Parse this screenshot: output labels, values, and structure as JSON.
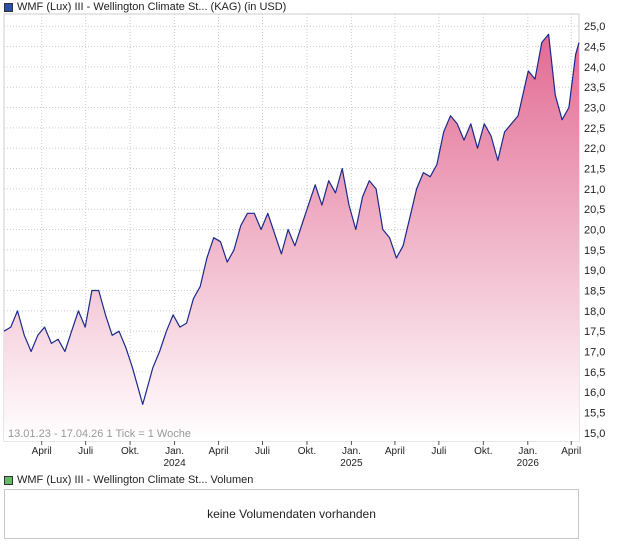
{
  "price_chart": {
    "legend_label": "WMF (Lux) III - Wellington Climate St... (KAG) (in USD)",
    "footer": "13.01.23 - 17.04.26   1 Tick = 1 Woche",
    "colors": {
      "line": "#1a2a8a",
      "fill_top": "#e26a93",
      "fill_bottom": "#ffffff",
      "grid": "#cccccc",
      "swatch": "#2b4fa8"
    }
  },
  "volume_chart": {
    "legend_label": "WMF (Lux) III - Wellington Climate St... Volumen",
    "message": "keine Volumendaten vorhanden",
    "swatch_color": "#66bb66"
  },
  "chart_data": {
    "type": "area",
    "ylim": [
      14.8,
      25.3
    ],
    "xlim": [
      "2023-01-13",
      "2026-04-17"
    ],
    "y_ticks": [
      "15,0",
      "15,5",
      "16,0",
      "16,5",
      "17,0",
      "17,5",
      "18,0",
      "18,5",
      "19,0",
      "19,5",
      "20,0",
      "20,5",
      "21,0",
      "21,5",
      "22,0",
      "22,5",
      "23,0",
      "23,5",
      "24,0",
      "24,5",
      "25,0"
    ],
    "x_ticks": [
      {
        "label": "April",
        "date": "2023-04-01"
      },
      {
        "label": "Juli",
        "date": "2023-07-01"
      },
      {
        "label": "Okt.",
        "date": "2023-10-01"
      },
      {
        "label": "Jan.",
        "year": "2024",
        "date": "2024-01-01"
      },
      {
        "label": "April",
        "date": "2024-04-01"
      },
      {
        "label": "Juli",
        "date": "2024-07-01"
      },
      {
        "label": "Okt.",
        "date": "2024-10-01"
      },
      {
        "label": "Jan.",
        "year": "2025",
        "date": "2025-01-01"
      },
      {
        "label": "April",
        "date": "2025-04-01"
      },
      {
        "label": "Juli",
        "date": "2025-07-01"
      },
      {
        "label": "Okt.",
        "date": "2025-10-01"
      },
      {
        "label": "Jan.",
        "year": "2026",
        "date": "2026-01-01"
      },
      {
        "label": "April",
        "date": "2026-04-01"
      }
    ],
    "series": [
      {
        "values": [
          [
            "2023-01-13",
            17.5
          ],
          [
            "2023-01-27",
            17.6
          ],
          [
            "2023-02-10",
            18.0
          ],
          [
            "2023-02-24",
            17.4
          ],
          [
            "2023-03-10",
            17.0
          ],
          [
            "2023-03-24",
            17.4
          ],
          [
            "2023-04-07",
            17.6
          ],
          [
            "2023-04-21",
            17.2
          ],
          [
            "2023-05-05",
            17.3
          ],
          [
            "2023-05-19",
            17.0
          ],
          [
            "2023-06-02",
            17.5
          ],
          [
            "2023-06-16",
            18.0
          ],
          [
            "2023-06-30",
            17.6
          ],
          [
            "2023-07-14",
            18.5
          ],
          [
            "2023-07-28",
            18.5
          ],
          [
            "2023-08-11",
            17.9
          ],
          [
            "2023-08-25",
            17.4
          ],
          [
            "2023-09-08",
            17.5
          ],
          [
            "2023-09-22",
            17.1
          ],
          [
            "2023-10-06",
            16.6
          ],
          [
            "2023-10-20",
            16.0
          ],
          [
            "2023-10-27",
            15.7
          ],
          [
            "2023-11-03",
            16.0
          ],
          [
            "2023-11-17",
            16.6
          ],
          [
            "2023-12-01",
            17.0
          ],
          [
            "2023-12-15",
            17.5
          ],
          [
            "2023-12-29",
            17.9
          ],
          [
            "2024-01-12",
            17.6
          ],
          [
            "2024-01-26",
            17.7
          ],
          [
            "2024-02-09",
            18.3
          ],
          [
            "2024-02-23",
            18.6
          ],
          [
            "2024-03-08",
            19.3
          ],
          [
            "2024-03-22",
            19.8
          ],
          [
            "2024-04-05",
            19.7
          ],
          [
            "2024-04-19",
            19.2
          ],
          [
            "2024-05-03",
            19.5
          ],
          [
            "2024-05-17",
            20.1
          ],
          [
            "2024-05-31",
            20.4
          ],
          [
            "2024-06-14",
            20.4
          ],
          [
            "2024-06-28",
            20.0
          ],
          [
            "2024-07-12",
            20.4
          ],
          [
            "2024-07-26",
            19.9
          ],
          [
            "2024-08-09",
            19.4
          ],
          [
            "2024-08-23",
            20.0
          ],
          [
            "2024-09-06",
            19.6
          ],
          [
            "2024-09-20",
            20.1
          ],
          [
            "2024-10-04",
            20.6
          ],
          [
            "2024-10-18",
            21.1
          ],
          [
            "2024-11-01",
            20.6
          ],
          [
            "2024-11-15",
            21.2
          ],
          [
            "2024-11-29",
            20.9
          ],
          [
            "2024-12-13",
            21.5
          ],
          [
            "2024-12-27",
            20.6
          ],
          [
            "2025-01-10",
            20.0
          ],
          [
            "2025-01-24",
            20.8
          ],
          [
            "2025-02-07",
            21.2
          ],
          [
            "2025-02-21",
            21.0
          ],
          [
            "2025-03-07",
            20.0
          ],
          [
            "2025-03-21",
            19.8
          ],
          [
            "2025-04-04",
            19.3
          ],
          [
            "2025-04-18",
            19.6
          ],
          [
            "2025-05-02",
            20.3
          ],
          [
            "2025-05-16",
            21.0
          ],
          [
            "2025-05-30",
            21.4
          ],
          [
            "2025-06-13",
            21.3
          ],
          [
            "2025-06-27",
            21.6
          ],
          [
            "2025-07-11",
            22.4
          ],
          [
            "2025-07-25",
            22.8
          ],
          [
            "2025-08-08",
            22.6
          ],
          [
            "2025-08-22",
            22.2
          ],
          [
            "2025-09-05",
            22.6
          ],
          [
            "2025-09-19",
            22.0
          ],
          [
            "2025-10-03",
            22.6
          ],
          [
            "2025-10-17",
            22.3
          ],
          [
            "2025-10-31",
            21.7
          ],
          [
            "2025-11-14",
            22.4
          ],
          [
            "2025-11-28",
            22.6
          ],
          [
            "2025-12-12",
            22.8
          ],
          [
            "2026-01-02",
            23.9
          ],
          [
            "2026-01-16",
            23.7
          ],
          [
            "2026-01-30",
            24.6
          ],
          [
            "2026-02-13",
            24.8
          ],
          [
            "2026-02-27",
            23.3
          ],
          [
            "2026-03-13",
            22.7
          ],
          [
            "2026-03-27",
            23.0
          ],
          [
            "2026-04-10",
            24.3
          ],
          [
            "2026-04-17",
            24.6
          ]
        ]
      }
    ]
  }
}
